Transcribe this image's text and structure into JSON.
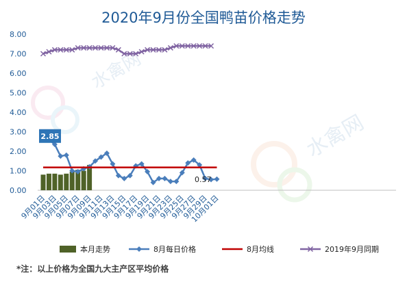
{
  "chart_data": {
    "title": "2020年9月份全国鸭苗价格走势",
    "type": "line",
    "y_ticks": [
      "0.00",
      "1.00",
      "2.00",
      "3.00",
      "4.00",
      "5.00",
      "6.00",
      "7.00",
      "8.00"
    ],
    "ylim": [
      0,
      8
    ],
    "grid": false,
    "legend_position": "bottom",
    "x_labels": [
      "9月01日",
      "9月03日",
      "9月05日",
      "9月07日",
      "9月09日",
      "9月11日",
      "9月13日",
      "9月15日",
      "9月17日",
      "9月19日",
      "9月21日",
      "9月23日",
      "9月25日",
      "9月27日",
      "9月29日",
      "10月01日"
    ],
    "categories_count": 31,
    "series": [
      {
        "name": "本月走势",
        "kind": "bar",
        "color": "#4f6228",
        "values": [
          0.8,
          0.85,
          0.85,
          0.8,
          0.85,
          0.95,
          1.05,
          1.0,
          1.3
        ]
      },
      {
        "name": "8月每日价格",
        "kind": "line",
        "color": "#4a7ebb",
        "marker": "diamond",
        "values": [
          2.85,
          2.6,
          2.35,
          1.75,
          1.8,
          1.0,
          0.95,
          1.1,
          1.2,
          1.5,
          1.7,
          1.9,
          1.35,
          0.75,
          0.6,
          0.75,
          1.25,
          1.35,
          0.95,
          0.4,
          0.6,
          0.6,
          0.45,
          0.45,
          0.9,
          1.4,
          1.55,
          1.3,
          0.6,
          0.55,
          0.57
        ]
      },
      {
        "name": "8月均线",
        "kind": "line",
        "color": "#c00000",
        "values": [
          1.17,
          1.17,
          1.17,
          1.17,
          1.17,
          1.17,
          1.17,
          1.17,
          1.17,
          1.17,
          1.17,
          1.17,
          1.17,
          1.17,
          1.17,
          1.17,
          1.17,
          1.17,
          1.17,
          1.17,
          1.17,
          1.17,
          1.17,
          1.17,
          1.17,
          1.17,
          1.17,
          1.17,
          1.17,
          1.17,
          1.17
        ]
      },
      {
        "name": "2019年9月同期",
        "kind": "line",
        "color": "#8064a2",
        "marker": "x",
        "values": [
          7.0,
          7.1,
          7.2,
          7.2,
          7.2,
          7.2,
          7.3,
          7.3,
          7.3,
          7.3,
          7.3,
          7.3,
          7.3,
          7.2,
          7.0,
          7.0,
          7.0,
          7.1,
          7.2,
          7.2,
          7.2,
          7.2,
          7.3,
          7.4,
          7.4,
          7.4,
          7.4,
          7.4,
          7.4,
          7.4
        ]
      }
    ],
    "annotations": [
      {
        "text": "2.85",
        "series": "8月每日价格",
        "index": 0
      },
      {
        "text": "0.57",
        "series": "8月每日价格",
        "index": 30
      }
    ]
  },
  "footnote": "*注：以上价格为全国九大主产区平均价格",
  "watermark": "水禽网 SHUIQINWANG"
}
